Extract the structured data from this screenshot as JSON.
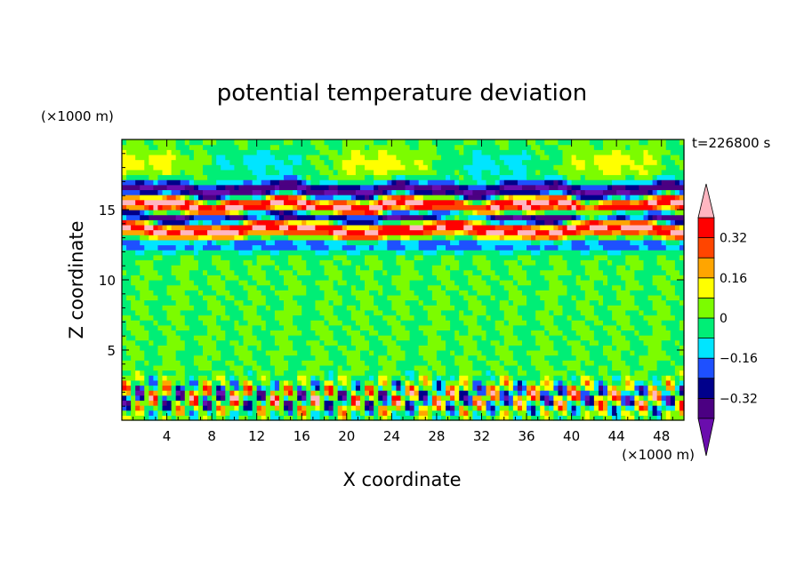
{
  "chart_data": {
    "type": "heatmap",
    "title": "potential temperature deviation",
    "time_label": "t=226800 s",
    "xlabel": "X coordinate",
    "ylabel": "Z coordinate",
    "x_unit": "(×1000 m)",
    "y_unit": "(×1000 m)",
    "xlim": [
      0,
      50
    ],
    "ylim": [
      0,
      20
    ],
    "x_ticks": [
      4,
      8,
      12,
      16,
      20,
      24,
      28,
      32,
      36,
      40,
      44,
      48
    ],
    "x_tick_labels": [
      "4",
      "8",
      "12",
      "16",
      "20",
      "24",
      "28",
      "32",
      "36",
      "40",
      "44",
      "48"
    ],
    "y_ticks": [
      5,
      10,
      15
    ],
    "y_tick_labels": [
      "5",
      "10",
      "15"
    ],
    "colorbar": {
      "levels": [
        -0.4,
        -0.32,
        -0.24,
        -0.16,
        -0.08,
        0,
        0.08,
        0.16,
        0.24,
        0.32,
        0.4
      ],
      "labeled_levels": [
        0.32,
        0.16,
        0,
        -0.16,
        -0.32
      ],
      "labels": [
        "0.32",
        "0.16",
        "0",
        "−0.16",
        "−0.32"
      ],
      "colors": [
        "#6a0dad",
        "#4b0082",
        "#00008b",
        "#1e50ff",
        "#00e5ff",
        "#00ee76",
        "#7cfc00",
        "#ffff00",
        "#ffa500",
        "#ff4500",
        "#ff0000",
        "#ffb6c1"
      ],
      "extend": "both"
    }
  }
}
